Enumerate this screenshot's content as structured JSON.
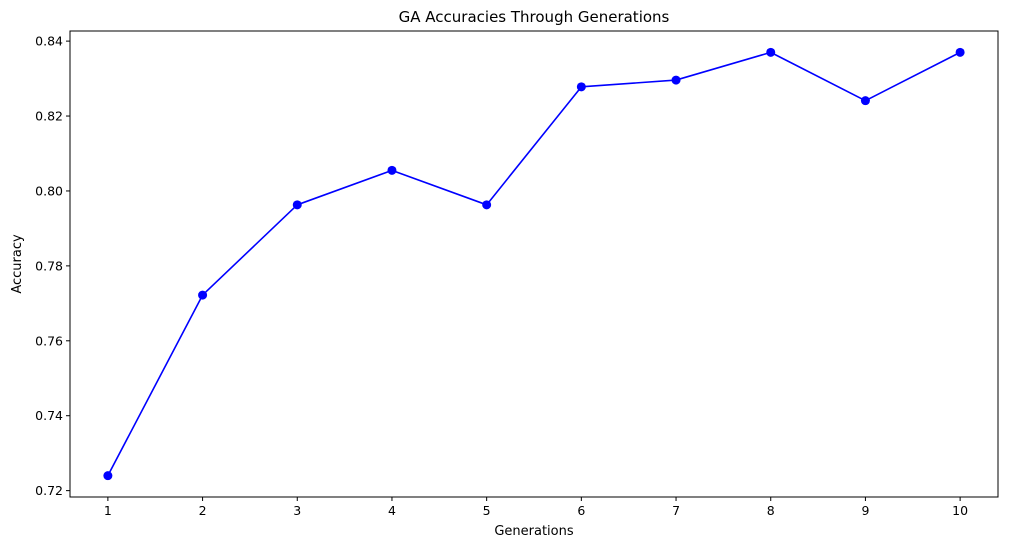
{
  "chart_data": {
    "type": "line",
    "title": "GA Accuracies Through Generations",
    "xlabel": "Generations",
    "ylabel": "Accuracy",
    "x": [
      1,
      2,
      3,
      4,
      5,
      6,
      7,
      8,
      9,
      10
    ],
    "xlim": [
      0.6,
      10.4
    ],
    "ylim": [
      0.7183,
      0.8427
    ],
    "xticks": [
      1,
      2,
      3,
      4,
      5,
      6,
      7,
      8,
      9,
      10
    ],
    "yticks": [
      0.72,
      0.74,
      0.76,
      0.78,
      0.8,
      0.82,
      0.84
    ],
    "ytick_labels": [
      "0.72",
      "0.74",
      "0.76",
      "0.78",
      "0.80",
      "0.82",
      "0.84"
    ],
    "grid": false,
    "legend": "none",
    "series": [
      {
        "values": [
          0.724,
          0.7722,
          0.7963,
          0.8055,
          0.7963,
          0.8278,
          0.8296,
          0.837,
          0.8241,
          0.837
        ],
        "color": "#0000ff",
        "marker": "circle"
      }
    ]
  }
}
